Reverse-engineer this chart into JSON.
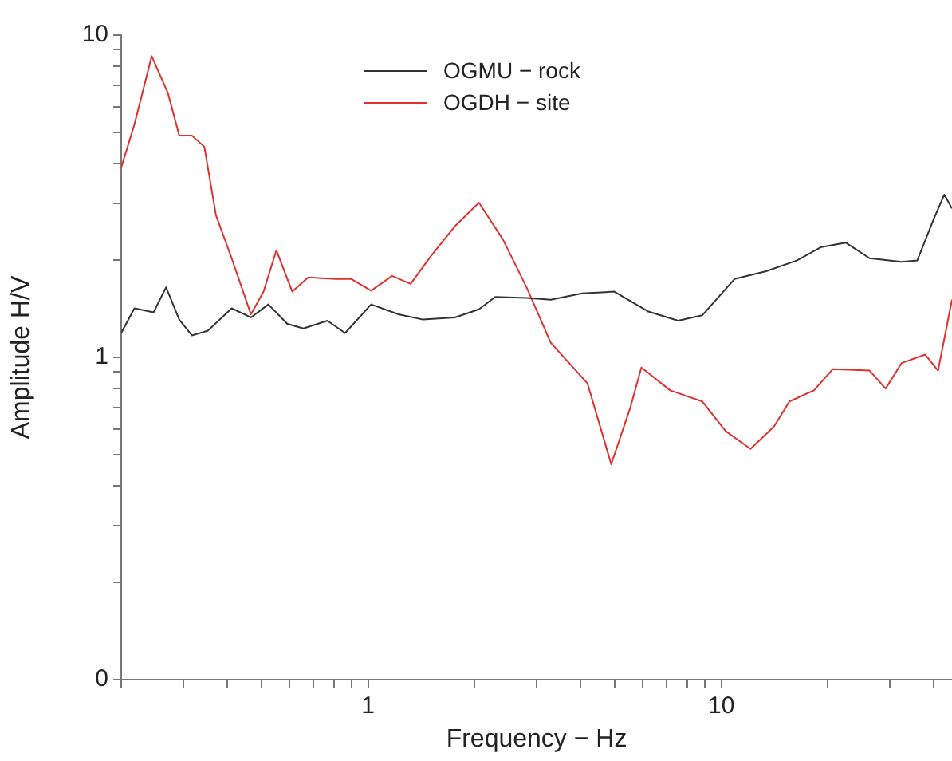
{
  "chart_data": {
    "type": "line",
    "xlabel": "Frequency − Hz",
    "ylabel": "Amplitude H/V",
    "log": "xy",
    "grid": false,
    "legend": "top",
    "marker": "none",
    "line_style": "solid",
    "xlim": [
      0.2,
      45
    ],
    "ylim": [
      0.1,
      10
    ],
    "xticks": [
      {
        "value": 0.2,
        "label": null
      },
      {
        "value": 0.3,
        "label": null
      },
      {
        "value": 0.4,
        "label": null
      },
      {
        "value": 0.5,
        "label": null
      },
      {
        "value": 0.6,
        "label": null
      },
      {
        "value": 0.7,
        "label": null
      },
      {
        "value": 0.8,
        "label": null
      },
      {
        "value": 0.9,
        "label": null
      },
      1,
      {
        "value": 2,
        "label": null
      },
      {
        "value": 3,
        "label": null
      },
      {
        "value": 4,
        "label": null
      },
      {
        "value": 5,
        "label": null
      },
      {
        "value": 6,
        "label": null
      },
      {
        "value": 7,
        "label": null
      },
      {
        "value": 8,
        "label": null
      },
      {
        "value": 9,
        "label": null
      },
      10,
      {
        "value": 20,
        "label": null
      },
      {
        "value": 30,
        "label": null
      },
      {
        "value": 40,
        "label": null
      }
    ],
    "yticks": [
      {
        "value": 0.1,
        "label": "0"
      },
      {
        "value": 0.2,
        "label": null
      },
      {
        "value": 0.3,
        "label": null
      },
      {
        "value": 0.4,
        "label": null
      },
      {
        "value": 0.5,
        "label": null
      },
      {
        "value": 0.6,
        "label": null
      },
      {
        "value": 0.7,
        "label": null
      },
      {
        "value": 0.8,
        "label": null
      },
      {
        "value": 0.9,
        "label": null
      },
      1,
      {
        "value": 2,
        "label": null
      },
      {
        "value": 3,
        "label": null
      },
      {
        "value": 4,
        "label": null
      },
      {
        "value": 5,
        "label": null
      },
      {
        "value": 6,
        "label": null
      },
      {
        "value": 7,
        "label": null
      },
      {
        "value": 8,
        "label": null
      },
      {
        "value": 9,
        "label": null
      },
      10
    ],
    "series": [
      {
        "name": "OGMU − rock",
        "color": "#333333",
        "x": [
          0.2,
          0.218,
          0.247,
          0.268,
          0.292,
          0.317,
          0.352,
          0.411,
          0.466,
          0.522,
          0.591,
          0.656,
          0.767,
          0.861,
          1.02,
          1.22,
          1.43,
          1.76,
          2.06,
          2.29,
          2.81,
          3.29,
          4.04,
          4.98,
          6.19,
          7.55,
          8.83,
          10.9,
          13.4,
          16.4,
          19.2,
          22.5,
          26.3,
          32.4,
          35.9,
          39.8,
          42.8,
          45
        ],
        "values": [
          1.19,
          1.42,
          1.38,
          1.65,
          1.31,
          1.17,
          1.21,
          1.42,
          1.33,
          1.46,
          1.27,
          1.23,
          1.3,
          1.19,
          1.46,
          1.36,
          1.31,
          1.33,
          1.41,
          1.54,
          1.53,
          1.51,
          1.58,
          1.6,
          1.39,
          1.3,
          1.35,
          1.75,
          1.85,
          2.0,
          2.2,
          2.27,
          2.03,
          1.98,
          2.0,
          2.66,
          3.2,
          2.9
        ]
      },
      {
        "name": "OGDH − site",
        "color": "#e03030",
        "x": [
          0.2,
          0.218,
          0.244,
          0.271,
          0.292,
          0.317,
          0.344,
          0.371,
          0.411,
          0.466,
          0.506,
          0.55,
          0.61,
          0.677,
          0.808,
          0.897,
          1.02,
          1.17,
          1.32,
          1.51,
          1.76,
          2.06,
          2.41,
          2.81,
          3.29,
          4.18,
          4.88,
          5.53,
          5.94,
          7.17,
          8.83,
          10.3,
          12.1,
          14.1,
          15.6,
          18.3,
          20.7,
          26.3,
          29.2,
          32.4,
          37.8,
          41.1,
          45
        ],
        "values": [
          3.88,
          5.28,
          8.6,
          6.63,
          4.88,
          4.88,
          4.5,
          2.76,
          2.03,
          1.36,
          1.6,
          2.15,
          1.6,
          1.77,
          1.75,
          1.75,
          1.61,
          1.79,
          1.69,
          2.07,
          2.55,
          3.02,
          2.32,
          1.65,
          1.11,
          0.83,
          0.466,
          0.7,
          0.93,
          0.79,
          0.73,
          0.59,
          0.52,
          0.61,
          0.73,
          0.79,
          0.92,
          0.91,
          0.8,
          0.96,
          1.02,
          0.91,
          1.51
        ]
      }
    ]
  }
}
